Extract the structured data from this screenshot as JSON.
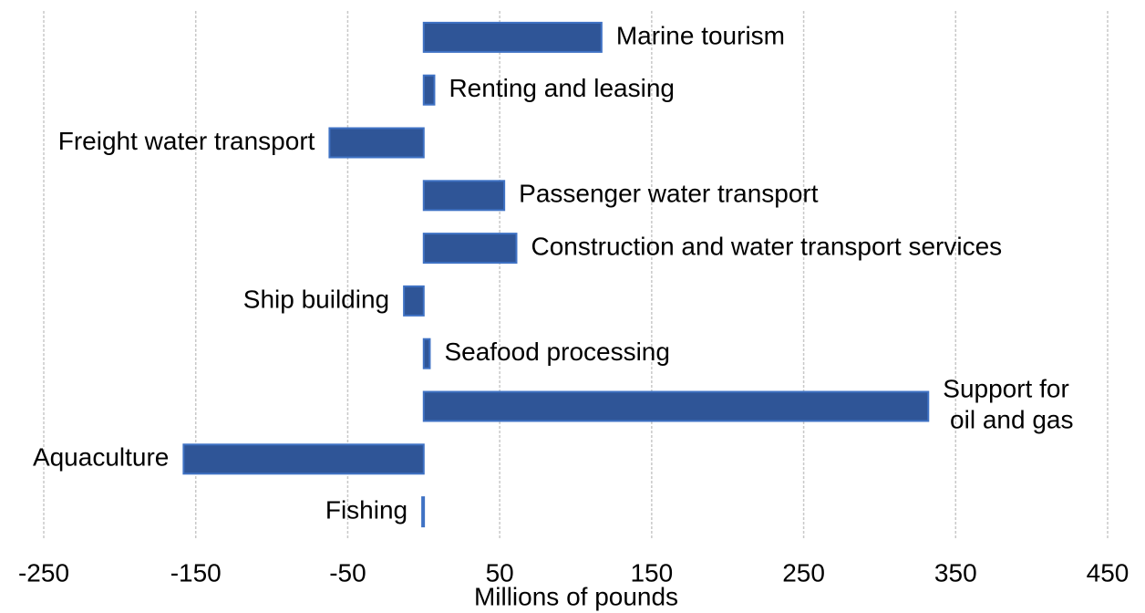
{
  "chart_data": {
    "type": "bar",
    "orientation": "horizontal",
    "x_label": "Millions of pounds",
    "categories": [
      "Marine tourism",
      "Renting and leasing",
      "Freight water transport",
      "Passenger water transport",
      "Construction and water transport services",
      "Ship building",
      "Seafood processing",
      "Support for oil and gas",
      "Aquaculture",
      "Fishing"
    ],
    "values": [
      117,
      7,
      -62,
      53,
      61,
      -13,
      4,
      332,
      -158,
      -1
    ],
    "color": "#2f5597",
    "xlim": [
      -250,
      450
    ],
    "xticks": [
      -250,
      -150,
      -50,
      50,
      150,
      250,
      350,
      450
    ],
    "grid": true
  }
}
